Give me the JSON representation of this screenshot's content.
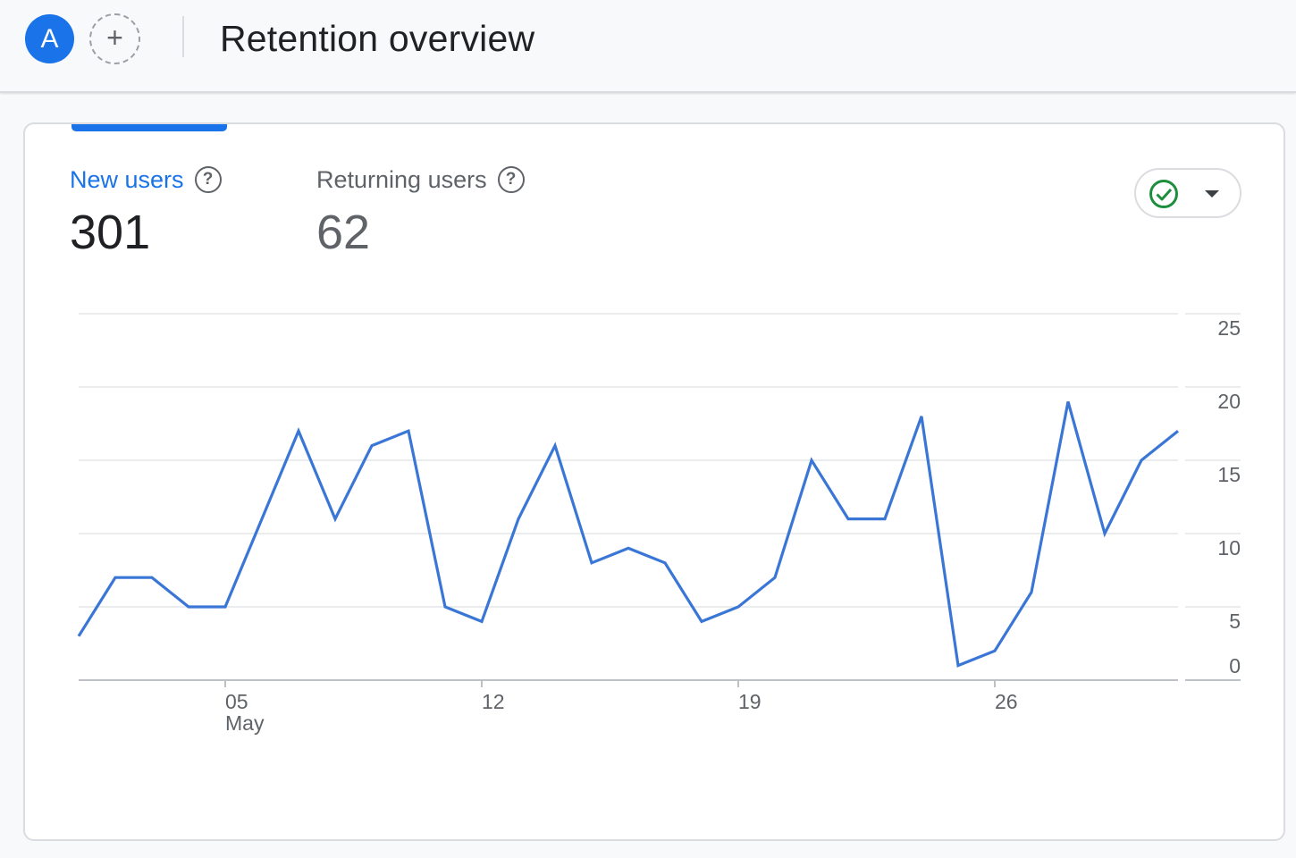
{
  "header": {
    "avatar_initial": "A",
    "add_label": "+",
    "title": "Retention overview"
  },
  "metrics": [
    {
      "label": "New users",
      "value": "301",
      "help": "?"
    },
    {
      "label": "Returning users",
      "value": "62",
      "help": "?"
    }
  ],
  "compare": {
    "icon": "check-circle-icon",
    "dropdown_icon": "caret-down-icon"
  },
  "colors": {
    "accent": "#1a73e8",
    "line": "#3a76d6",
    "check": "#1e8e3e"
  },
  "chart_data": {
    "type": "line",
    "title": "",
    "xlabel": "",
    "ylabel": "",
    "ylim": [
      0,
      25
    ],
    "y_ticks": [
      0,
      5,
      10,
      15,
      20,
      25
    ],
    "y_axis_position": "right",
    "grid": true,
    "x_ticks": [
      {
        "day": 5,
        "label": "05",
        "sublabel": "May"
      },
      {
        "day": 12,
        "label": "12"
      },
      {
        "day": 19,
        "label": "19"
      },
      {
        "day": 26,
        "label": "26"
      }
    ],
    "series": [
      {
        "name": "",
        "x": [
          1,
          2,
          3,
          4,
          5,
          6,
          7,
          8,
          9,
          10,
          11,
          12,
          13,
          14,
          15,
          16,
          17,
          18,
          19,
          20,
          21,
          22,
          23,
          24,
          25,
          26,
          27,
          28,
          29,
          30,
          31
        ],
        "values": [
          3,
          7,
          7,
          5,
          5,
          11,
          17,
          11,
          16,
          17,
          5,
          4,
          11,
          16,
          8,
          9,
          8,
          4,
          5,
          7,
          15,
          11,
          11,
          18,
          1,
          2,
          6,
          19,
          10,
          15,
          17
        ]
      }
    ]
  }
}
